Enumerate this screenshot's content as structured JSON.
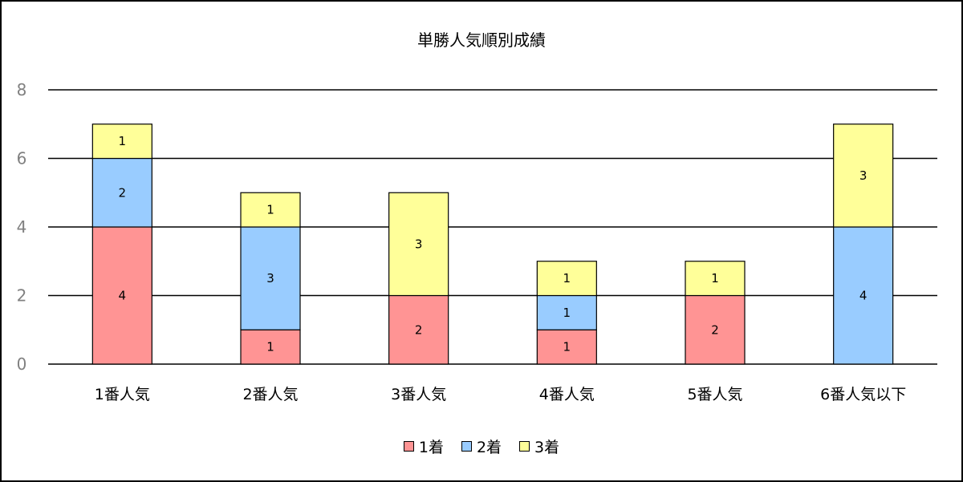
{
  "chart_data": {
    "type": "bar",
    "stacked": true,
    "title": "単勝人気順別成績",
    "xlabel": "",
    "ylabel": "",
    "ylim": [
      0,
      8
    ],
    "yticks": [
      0,
      2,
      4,
      6,
      8
    ],
    "grid": true,
    "legend_position": "bottom",
    "categories": [
      "1番人気",
      "2番人気",
      "3番人気",
      "4番人気",
      "5番人気",
      "6番人気以下"
    ],
    "series": [
      {
        "name": "1着",
        "color": "#ff9494",
        "values": [
          4,
          1,
          2,
          1,
          2,
          0
        ]
      },
      {
        "name": "2着",
        "color": "#99ccff",
        "values": [
          2,
          3,
          0,
          1,
          0,
          4
        ]
      },
      {
        "name": "3着",
        "color": "#ffff99",
        "values": [
          1,
          1,
          3,
          1,
          1,
          3
        ]
      }
    ]
  }
}
